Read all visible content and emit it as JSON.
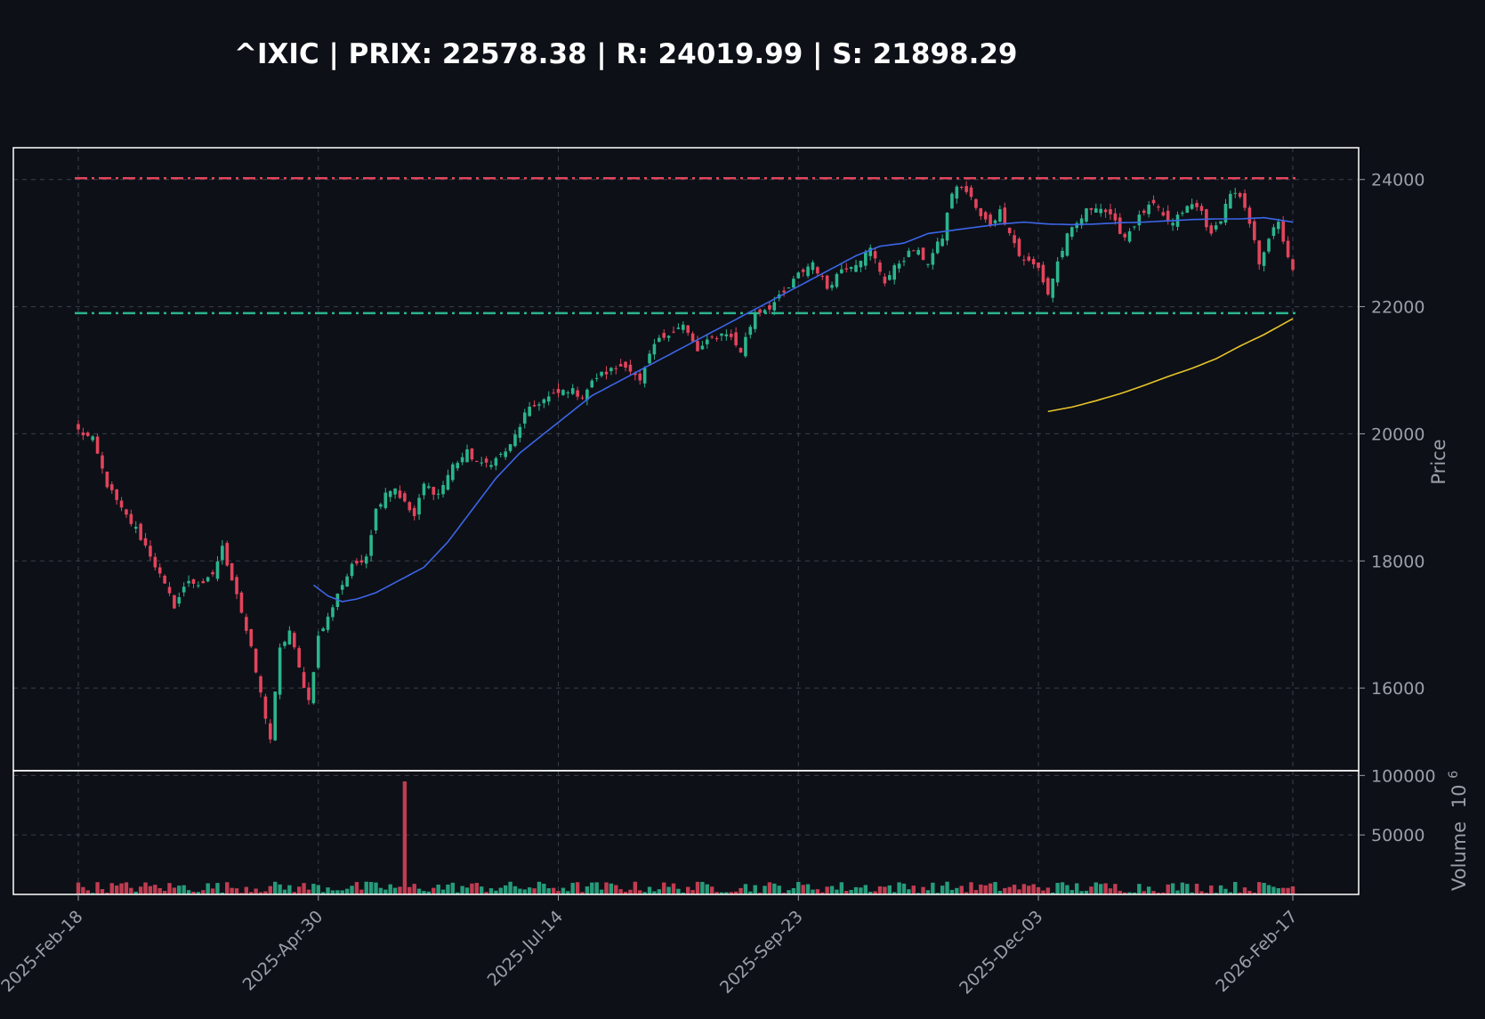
{
  "chart_data": {
    "type": "candlestick",
    "title": "^IXIC | PRIX: 22578.38 | R: 24019.99 | S: 21898.29",
    "ticker": "^IXIC",
    "price": 22578.38,
    "resistance": 24019.99,
    "support": 21898.29,
    "ylabel": "Price",
    "volume_label": "Volume",
    "volume_exponent": "6",
    "ylim": [
      14700,
      24500
    ],
    "yticks": [
      "16000",
      "18000",
      "20000",
      "22000",
      "24000"
    ],
    "volume_ylim": [
      0,
      100000
    ],
    "volume_yticks": [
      "50000",
      "100000"
    ],
    "xticks": [
      "2025-Feb-18",
      "2025-Apr-30",
      "2025-Jul-14",
      "2025-Sep-23",
      "2025-Dec-03",
      "2026-Feb-17"
    ],
    "grid": true,
    "colors": {
      "background": "#0d1017",
      "up": "#2bb58c",
      "down": "#e2445c",
      "ma_short": "#3c66e8",
      "ma_long": "#e8c52a",
      "resistance": "#e2445c",
      "support": "#2bb58c",
      "frame": "#ffffff"
    },
    "close_anchors": [
      [
        0,
        20050
      ],
      [
        3,
        19900
      ],
      [
        6,
        19200
      ],
      [
        9,
        18800
      ],
      [
        12,
        18500
      ],
      [
        15,
        18100
      ],
      [
        18,
        17600
      ],
      [
        20,
        17300
      ],
      [
        23,
        17700
      ],
      [
        26,
        17600
      ],
      [
        28,
        17800
      ],
      [
        30,
        18200
      ],
      [
        33,
        17500
      ],
      [
        36,
        16600
      ],
      [
        38,
        15900
      ],
      [
        40,
        15200
      ],
      [
        42,
        16600
      ],
      [
        44,
        16900
      ],
      [
        46,
        16300
      ],
      [
        48,
        15800
      ],
      [
        50,
        16800
      ],
      [
        52,
        17100
      ],
      [
        54,
        17500
      ],
      [
        57,
        17900
      ],
      [
        60,
        18100
      ],
      [
        62,
        18800
      ],
      [
        64,
        19100
      ],
      [
        66,
        19150
      ],
      [
        68,
        18900
      ],
      [
        70,
        18700
      ],
      [
        72,
        19200
      ],
      [
        75,
        19050
      ],
      [
        78,
        19500
      ],
      [
        81,
        19700
      ],
      [
        84,
        19500
      ],
      [
        87,
        19600
      ],
      [
        90,
        19800
      ],
      [
        93,
        20300
      ],
      [
        96,
        20500
      ],
      [
        99,
        20600
      ],
      [
        102,
        20700
      ],
      [
        105,
        20600
      ],
      [
        108,
        20900
      ],
      [
        111,
        21000
      ],
      [
        114,
        21100
      ],
      [
        117,
        20800
      ],
      [
        120,
        21400
      ],
      [
        123,
        21600
      ],
      [
        126,
        21700
      ],
      [
        129,
        21300
      ],
      [
        132,
        21500
      ],
      [
        135,
        21600
      ],
      [
        138,
        21300
      ],
      [
        141,
        21900
      ],
      [
        144,
        22000
      ],
      [
        147,
        22200
      ],
      [
        150,
        22500
      ],
      [
        153,
        22700
      ],
      [
        156,
        22300
      ],
      [
        159,
        22600
      ],
      [
        162,
        22700
      ],
      [
        165,
        22900
      ],
      [
        168,
        22400
      ],
      [
        171,
        22700
      ],
      [
        174,
        22900
      ],
      [
        177,
        22700
      ],
      [
        180,
        23100
      ],
      [
        182,
        23800
      ],
      [
        184,
        23900
      ],
      [
        186,
        23700
      ],
      [
        188,
        23400
      ],
      [
        190,
        23300
      ],
      [
        192,
        23500
      ],
      [
        194,
        23200
      ],
      [
        196,
        22800
      ],
      [
        198,
        22700
      ],
      [
        200,
        22600
      ],
      [
        202,
        22200
      ],
      [
        204,
        22700
      ],
      [
        206,
        23100
      ],
      [
        208,
        23300
      ],
      [
        210,
        23500
      ],
      [
        212,
        23600
      ],
      [
        214,
        23500
      ],
      [
        216,
        23300
      ],
      [
        218,
        23100
      ],
      [
        220,
        23300
      ],
      [
        222,
        23500
      ],
      [
        224,
        23600
      ],
      [
        226,
        23400
      ],
      [
        228,
        23300
      ],
      [
        230,
        23500
      ],
      [
        232,
        23600
      ],
      [
        234,
        23500
      ],
      [
        236,
        23100
      ],
      [
        238,
        23400
      ],
      [
        240,
        23800
      ],
      [
        242,
        23700
      ],
      [
        244,
        23300
      ],
      [
        246,
        22700
      ],
      [
        248,
        23100
      ],
      [
        250,
        23300
      ],
      [
        252,
        22800
      ],
      [
        253,
        22578.38
      ]
    ],
    "ma_short_anchors": [
      [
        49,
        17620
      ],
      [
        52,
        17450
      ],
      [
        55,
        17360
      ],
      [
        58,
        17400
      ],
      [
        62,
        17500
      ],
      [
        67,
        17700
      ],
      [
        72,
        17900
      ],
      [
        77,
        18300
      ],
      [
        82,
        18800
      ],
      [
        87,
        19300
      ],
      [
        92,
        19700
      ],
      [
        97,
        20000
      ],
      [
        102,
        20300
      ],
      [
        107,
        20600
      ],
      [
        112,
        20800
      ],
      [
        117,
        21000
      ],
      [
        122,
        21200
      ],
      [
        127,
        21400
      ],
      [
        132,
        21600
      ],
      [
        137,
        21800
      ],
      [
        142,
        22000
      ],
      [
        147,
        22200
      ],
      [
        152,
        22400
      ],
      [
        157,
        22600
      ],
      [
        162,
        22800
      ],
      [
        167,
        22950
      ],
      [
        172,
        23000
      ],
      [
        177,
        23150
      ],
      [
        182,
        23200
      ],
      [
        187,
        23250
      ],
      [
        192,
        23300
      ],
      [
        197,
        23330
      ],
      [
        202,
        23300
      ],
      [
        207,
        23290
      ],
      [
        212,
        23300
      ],
      [
        217,
        23320
      ],
      [
        222,
        23330
      ],
      [
        227,
        23350
      ],
      [
        232,
        23370
      ],
      [
        237,
        23380
      ],
      [
        242,
        23380
      ],
      [
        247,
        23400
      ],
      [
        253,
        23330
      ]
    ],
    "ma_long_anchors": [
      [
        202,
        20350
      ],
      [
        207,
        20420
      ],
      [
        212,
        20520
      ],
      [
        217,
        20630
      ],
      [
        222,
        20760
      ],
      [
        227,
        20900
      ],
      [
        232,
        21030
      ],
      [
        237,
        21180
      ],
      [
        242,
        21380
      ],
      [
        247,
        21560
      ],
      [
        253,
        21810
      ]
    ],
    "volume_base_range": [
      1200,
      11000
    ],
    "volume_spike": [
      68,
      95000
    ]
  }
}
